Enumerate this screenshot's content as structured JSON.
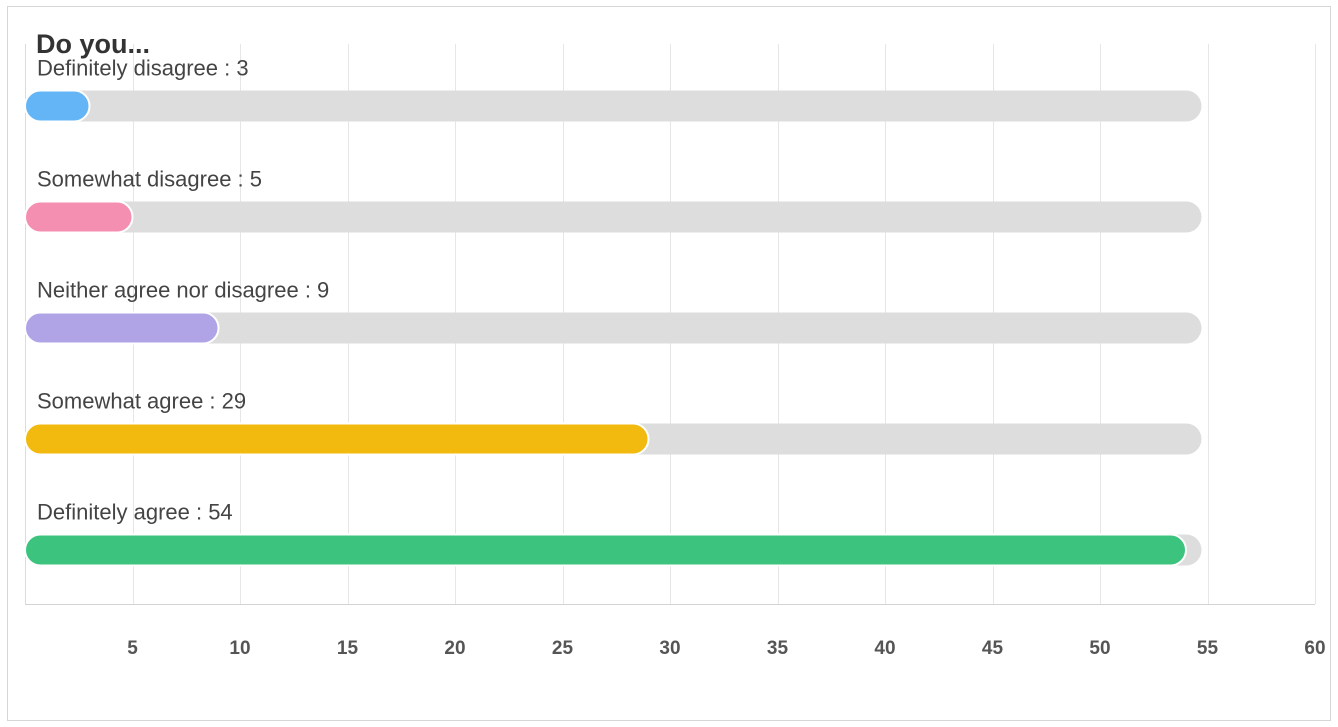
{
  "chart_data": {
    "type": "bar",
    "orientation": "horizontal",
    "title": "Do you...",
    "xlabel": "",
    "ylabel": "",
    "xlim": [
      0,
      60
    ],
    "track_max": 54,
    "xticks": [
      5,
      10,
      15,
      20,
      25,
      30,
      35,
      40,
      45,
      50,
      55,
      60
    ],
    "grid": true,
    "categories": [
      "Definitely disagree",
      "Somewhat disagree",
      "Neither agree nor disagree",
      "Somewhat agree",
      "Definitely agree"
    ],
    "values": [
      3,
      5,
      9,
      29,
      54
    ],
    "data_labels": [
      "Definitely disagree : 3",
      "Somewhat disagree : 5",
      "Neither agree nor disagree : 9",
      "Somewhat agree : 29",
      "Definitely agree : 54"
    ],
    "colors": [
      "#64b5f6",
      "#f48fb1",
      "#b0a4e6",
      "#f2b90f",
      "#3cc47f"
    ],
    "track_color": "#dddddd",
    "grid_color": "#e6e6e6"
  }
}
